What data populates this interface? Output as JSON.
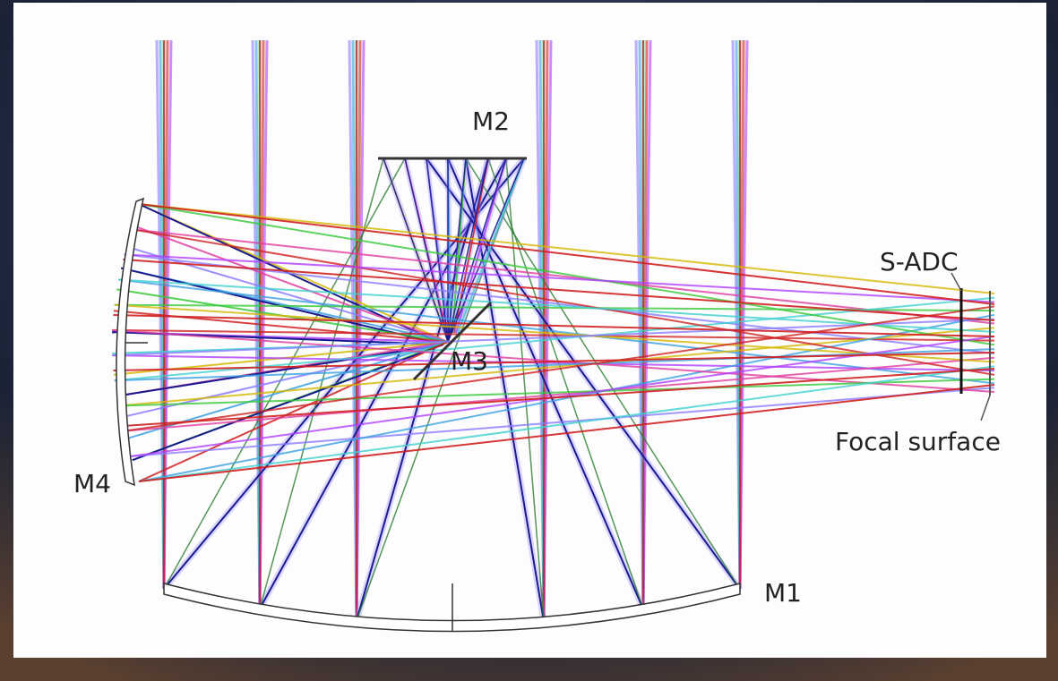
{
  "labels": {
    "m1": "M1",
    "m2": "M2",
    "m3": "M3",
    "m4": "M4",
    "s_adc": "S-ADC",
    "focal_surface": "Focal surface"
  }
}
